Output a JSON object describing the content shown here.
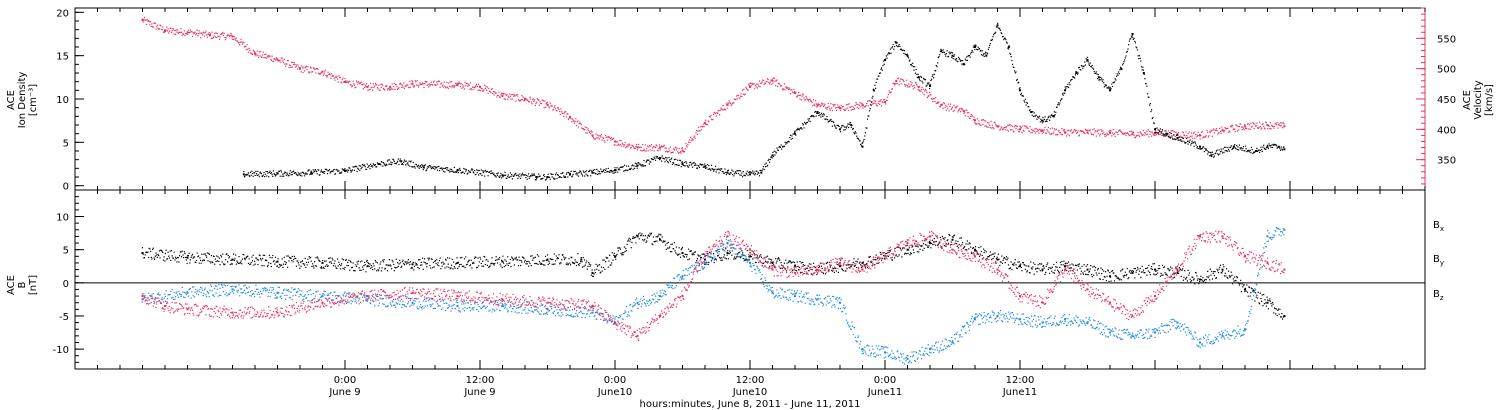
{
  "chart_data": [
    {
      "type": "scatter",
      "panel": "top",
      "ylabel_left": [
        "ACE",
        "Ion Density",
        "[cm⁻³]"
      ],
      "ylabel_right": [
        "ACE",
        "Velocity",
        "[km/s]"
      ],
      "ylim_left": [
        -0.5,
        20.5
      ],
      "ylim_right": [
        300,
        600
      ],
      "yticks_left": [
        0,
        5,
        10,
        15,
        20
      ],
      "yticks_right": [
        350,
        400,
        450,
        500,
        550
      ],
      "x_unit": "hours since 2011-06-08 00:00 UT",
      "series": [
        {
          "axis": "left",
          "color": "#000000",
          "points": [
            [
              15,
              1.3
            ],
            [
              18,
              1.4
            ],
            [
              21,
              1.5
            ],
            [
              24,
              1.7
            ],
            [
              27,
              2.5
            ],
            [
              29,
              2.8
            ],
            [
              31,
              2.1
            ],
            [
              34,
              1.8
            ],
            [
              38,
              1.2
            ],
            [
              41,
              1.0
            ],
            [
              42,
              1.0
            ],
            [
              44,
              1.3
            ],
            [
              46,
              1.5
            ],
            [
              48,
              1.8
            ],
            [
              50,
              2.3
            ],
            [
              52,
              3.2
            ],
            [
              54,
              2.5
            ],
            [
              56,
              2.2
            ],
            [
              58,
              1.5
            ],
            [
              60,
              1.3
            ],
            [
              61,
              1.5
            ],
            [
              62,
              3.5
            ],
            [
              64,
              6.0
            ],
            [
              66,
              8.5
            ],
            [
              68,
              6.5
            ],
            [
              69,
              7.0
            ],
            [
              70,
              4.5
            ],
            [
              71,
              11.0
            ],
            [
              72,
              14.5
            ],
            [
              73,
              16.5
            ],
            [
              74,
              15.0
            ],
            [
              75,
              12.5
            ],
            [
              76,
              11.5
            ],
            [
              77,
              15.5
            ],
            [
              78,
              15.0
            ],
            [
              79,
              14.0
            ],
            [
              80,
              16.0
            ],
            [
              81,
              15.0
            ],
            [
              82,
              18.5
            ],
            [
              83,
              16.0
            ],
            [
              84,
              11.0
            ],
            [
              85,
              8.5
            ],
            [
              86,
              7.5
            ],
            [
              87,
              8.0
            ],
            [
              88,
              11.0
            ],
            [
              89,
              13.0
            ],
            [
              90,
              14.5
            ],
            [
              91,
              12.5
            ],
            [
              92,
              11.0
            ],
            [
              93,
              13.5
            ],
            [
              94,
              17.5
            ],
            [
              95,
              13.0
            ],
            [
              96,
              6.5
            ],
            [
              97,
              6.0
            ],
            [
              98,
              5.5
            ],
            [
              100,
              4.5
            ],
            [
              101,
              3.5
            ],
            [
              103,
              4.5
            ],
            [
              105,
              4.0
            ],
            [
              106,
              4.5
            ],
            [
              107,
              4.5
            ],
            [
              107.5,
              4.2
            ]
          ]
        },
        {
          "axis": "right",
          "color": "#e8315f",
          "points": [
            [
              6,
              580
            ],
            [
              8,
              563
            ],
            [
              10,
              560
            ],
            [
              12,
              555
            ],
            [
              14,
              553
            ],
            [
              16,
              525
            ],
            [
              18,
              515
            ],
            [
              20,
              500
            ],
            [
              22,
              495
            ],
            [
              24,
              478
            ],
            [
              26,
              470
            ],
            [
              28,
              470
            ],
            [
              30,
              475
            ],
            [
              34,
              473
            ],
            [
              36,
              470
            ],
            [
              38,
              455
            ],
            [
              40,
              450
            ],
            [
              42,
              440
            ],
            [
              44,
              420
            ],
            [
              46,
              390
            ],
            [
              48,
              380
            ],
            [
              50,
              370
            ],
            [
              52,
              370
            ],
            [
              54,
              365
            ],
            [
              56,
              410
            ],
            [
              58,
              440
            ],
            [
              60,
              470
            ],
            [
              62,
              480
            ],
            [
              64,
              460
            ],
            [
              66,
              440
            ],
            [
              68,
              435
            ],
            [
              70,
              440
            ],
            [
              72,
              445
            ],
            [
              73,
              480
            ],
            [
              75,
              470
            ],
            [
              77,
              440
            ],
            [
              79,
              430
            ],
            [
              80,
              415
            ],
            [
              82,
              405
            ],
            [
              84,
              400
            ],
            [
              86,
              398
            ],
            [
              88,
              395
            ],
            [
              90,
              395
            ],
            [
              92,
              394
            ],
            [
              94,
              392
            ],
            [
              96,
              394
            ],
            [
              98,
              392
            ],
            [
              100,
              390
            ],
            [
              102,
              398
            ],
            [
              104,
              405
            ],
            [
              106,
              407
            ],
            [
              107.5,
              405
            ]
          ]
        }
      ]
    },
    {
      "type": "scatter",
      "panel": "bottom",
      "ylabel": [
        "ACE",
        "B",
        "[nT]"
      ],
      "ylim": [
        -13,
        14
      ],
      "yticks": [
        -10,
        -5,
        0,
        5,
        10
      ],
      "x_unit": "hours since 2011-06-08 00:00 UT",
      "series": [
        {
          "name": "Bx",
          "color": "#000000",
          "points": [
            [
              6,
              4.5
            ],
            [
              10,
              3.8
            ],
            [
              14,
              3.5
            ],
            [
              18,
              3.2
            ],
            [
              22,
              3.0
            ],
            [
              26,
              2.5
            ],
            [
              30,
              2.8
            ],
            [
              34,
              3.0
            ],
            [
              38,
              3.2
            ],
            [
              42,
              3.5
            ],
            [
              45,
              3.5
            ],
            [
              46,
              1.5
            ],
            [
              48,
              4.0
            ],
            [
              50,
              7.0
            ],
            [
              52,
              6.5
            ],
            [
              54,
              4.5
            ],
            [
              56,
              3.5
            ],
            [
              58,
              4.5
            ],
            [
              60,
              4.0
            ],
            [
              62,
              3.0
            ],
            [
              64,
              2.5
            ],
            [
              66,
              2.0
            ],
            [
              68,
              2.5
            ],
            [
              70,
              3.0
            ],
            [
              72,
              4.0
            ],
            [
              74,
              5.0
            ],
            [
              76,
              6.0
            ],
            [
              78,
              6.5
            ],
            [
              80,
              5.0
            ],
            [
              82,
              3.5
            ],
            [
              84,
              2.5
            ],
            [
              86,
              2.0
            ],
            [
              88,
              2.5
            ],
            [
              90,
              2.0
            ],
            [
              92,
              1.0
            ],
            [
              94,
              1.5
            ],
            [
              96,
              2.0
            ],
            [
              98,
              1.5
            ],
            [
              100,
              0.5
            ],
            [
              102,
              2.0
            ],
            [
              104,
              -1.0
            ],
            [
              106,
              -3.0
            ],
            [
              107.5,
              -5.0
            ]
          ]
        },
        {
          "name": "By",
          "color": "#1e88e5",
          "points": [
            [
              6,
              -2.5
            ],
            [
              10,
              -1.5
            ],
            [
              14,
              -1.0
            ],
            [
              18,
              -1.5
            ],
            [
              22,
              -2.0
            ],
            [
              26,
              -2.5
            ],
            [
              30,
              -3.0
            ],
            [
              34,
              -3.5
            ],
            [
              38,
              -3.5
            ],
            [
              42,
              -4.0
            ],
            [
              46,
              -4.5
            ],
            [
              48,
              -6.0
            ],
            [
              50,
              -3.0
            ],
            [
              52,
              -2.0
            ],
            [
              54,
              1.0
            ],
            [
              56,
              3.0
            ],
            [
              58,
              6.0
            ],
            [
              60,
              3.0
            ],
            [
              62,
              -1.5
            ],
            [
              64,
              -2.0
            ],
            [
              66,
              -2.5
            ],
            [
              68,
              -3.0
            ],
            [
              70,
              -10.0
            ],
            [
              72,
              -10.5
            ],
            [
              74,
              -11.5
            ],
            [
              76,
              -10.0
            ],
            [
              78,
              -9.0
            ],
            [
              80,
              -5.5
            ],
            [
              82,
              -5.0
            ],
            [
              84,
              -5.5
            ],
            [
              86,
              -6.0
            ],
            [
              88,
              -5.5
            ],
            [
              90,
              -6.0
            ],
            [
              92,
              -7.5
            ],
            [
              94,
              -8.0
            ],
            [
              96,
              -7.5
            ],
            [
              98,
              -6.0
            ],
            [
              100,
              -9.0
            ],
            [
              102,
              -8.0
            ],
            [
              104,
              -7.0
            ],
            [
              106,
              7.0
            ],
            [
              107.5,
              8.0
            ]
          ]
        },
        {
          "name": "Bz",
          "color": "#e8315f",
          "points": [
            [
              6,
              -2.0
            ],
            [
              8,
              -3.5
            ],
            [
              10,
              -4.0
            ],
            [
              14,
              -4.5
            ],
            [
              18,
              -4.5
            ],
            [
              22,
              -3.0
            ],
            [
              26,
              -2.0
            ],
            [
              30,
              -1.5
            ],
            [
              34,
              -2.0
            ],
            [
              38,
              -2.5
            ],
            [
              42,
              -3.0
            ],
            [
              46,
              -3.5
            ],
            [
              48,
              -6.0
            ],
            [
              50,
              -8.0
            ],
            [
              52,
              -5.0
            ],
            [
              54,
              -2.0
            ],
            [
              56,
              4.0
            ],
            [
              58,
              7.0
            ],
            [
              60,
              5.0
            ],
            [
              62,
              2.0
            ],
            [
              64,
              1.5
            ],
            [
              66,
              2.0
            ],
            [
              68,
              3.0
            ],
            [
              70,
              2.0
            ],
            [
              72,
              4.0
            ],
            [
              74,
              6.0
            ],
            [
              76,
              7.0
            ],
            [
              78,
              5.0
            ],
            [
              80,
              4.0
            ],
            [
              82,
              2.0
            ],
            [
              84,
              -2.0
            ],
            [
              86,
              -3.0
            ],
            [
              88,
              2.0
            ],
            [
              90,
              -1.0
            ],
            [
              92,
              -3.0
            ],
            [
              94,
              -5.0
            ],
            [
              96,
              -2.0
            ],
            [
              98,
              2.0
            ],
            [
              100,
              7.0
            ],
            [
              102,
              7.0
            ],
            [
              104,
              4.0
            ],
            [
              106,
              3.0
            ],
            [
              107.5,
              2.0
            ]
          ]
        }
      ],
      "legend_labels": [
        {
          "base": "B",
          "sub": "x",
          "color": "#000000"
        },
        {
          "base": "B",
          "sub": "y",
          "color": "#1e88e5"
        },
        {
          "base": "B",
          "sub": "z",
          "color": "#e8315f"
        }
      ],
      "zero_line": 0
    }
  ],
  "x_axis": {
    "xlim": [
      0,
      120
    ],
    "major_ticks": [
      24,
      36,
      48,
      60,
      72,
      84,
      96,
      108
    ],
    "labels": [
      {
        "x": 24,
        "time": "0:00",
        "date": "June 9"
      },
      {
        "x": 36,
        "time": "12:00",
        "date": "June 9"
      },
      {
        "x": 48,
        "time": "0:00",
        "date": "June10"
      },
      {
        "x": 60,
        "time": "12:00",
        "date": "June10"
      },
      {
        "x": 72,
        "time": "0:00",
        "date": "June11"
      },
      {
        "x": 84,
        "time": "12:00",
        "date": "June11"
      }
    ],
    "title": "hours:minutes, June  8, 2011 - June 11, 2011"
  }
}
